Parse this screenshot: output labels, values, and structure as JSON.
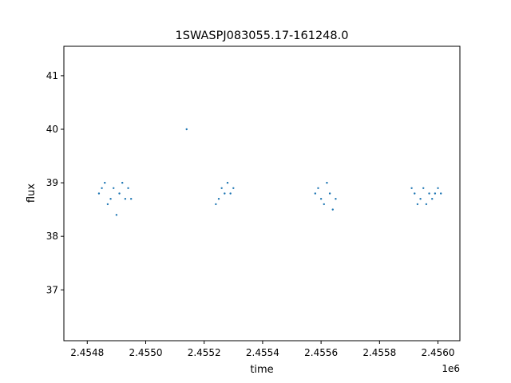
{
  "chart_data": {
    "type": "scatter",
    "title": "1SWASPJ083055.17-161248.0",
    "xlabel": "time",
    "ylabel": "flux",
    "x_offset_label": "1e6",
    "xlim": [
      2.45472,
      2.456075
    ],
    "ylim": [
      36.05,
      41.55
    ],
    "x_ticks": [
      2.4548,
      2.455,
      2.4552,
      2.4554,
      2.4556,
      2.4558,
      2.456
    ],
    "x_tick_labels": [
      "2.4548",
      "2.4550",
      "2.4552",
      "2.4554",
      "2.4556",
      "2.4558",
      "2.4560"
    ],
    "y_ticks": [
      37,
      38,
      39,
      40,
      41
    ],
    "y_tick_labels": [
      "37",
      "38",
      "39",
      "40",
      "41"
    ],
    "grid": false,
    "marker_color": "#1f77b4",
    "series": [
      {
        "x": [
          2.45484,
          2.45485,
          2.45486,
          2.45487,
          2.45488,
          2.45489,
          2.4549,
          2.45491,
          2.45492,
          2.45493,
          2.45494,
          2.45495,
          2.45514,
          2.45524,
          2.45525,
          2.45526,
          2.45527,
          2.45528,
          2.45529,
          2.4553,
          2.45558,
          2.45559,
          2.4556,
          2.45561,
          2.45562,
          2.45563,
          2.45564,
          2.45565,
          2.45591,
          2.45592,
          2.45593,
          2.45594,
          2.45595,
          2.45596,
          2.45597,
          2.45598,
          2.45599,
          2.456,
          2.45601
        ],
        "y": [
          38.8,
          38.9,
          39.0,
          38.6,
          38.7,
          38.9,
          38.4,
          38.8,
          39.0,
          38.7,
          38.9,
          38.7,
          40.0,
          38.6,
          38.7,
          38.9,
          38.8,
          39.0,
          38.8,
          38.9,
          38.8,
          38.9,
          38.7,
          38.6,
          39.0,
          38.8,
          38.5,
          38.7,
          38.9,
          38.8,
          38.6,
          38.7,
          38.9,
          38.6,
          38.8,
          38.7,
          38.8,
          38.9,
          38.8
        ]
      }
    ]
  }
}
